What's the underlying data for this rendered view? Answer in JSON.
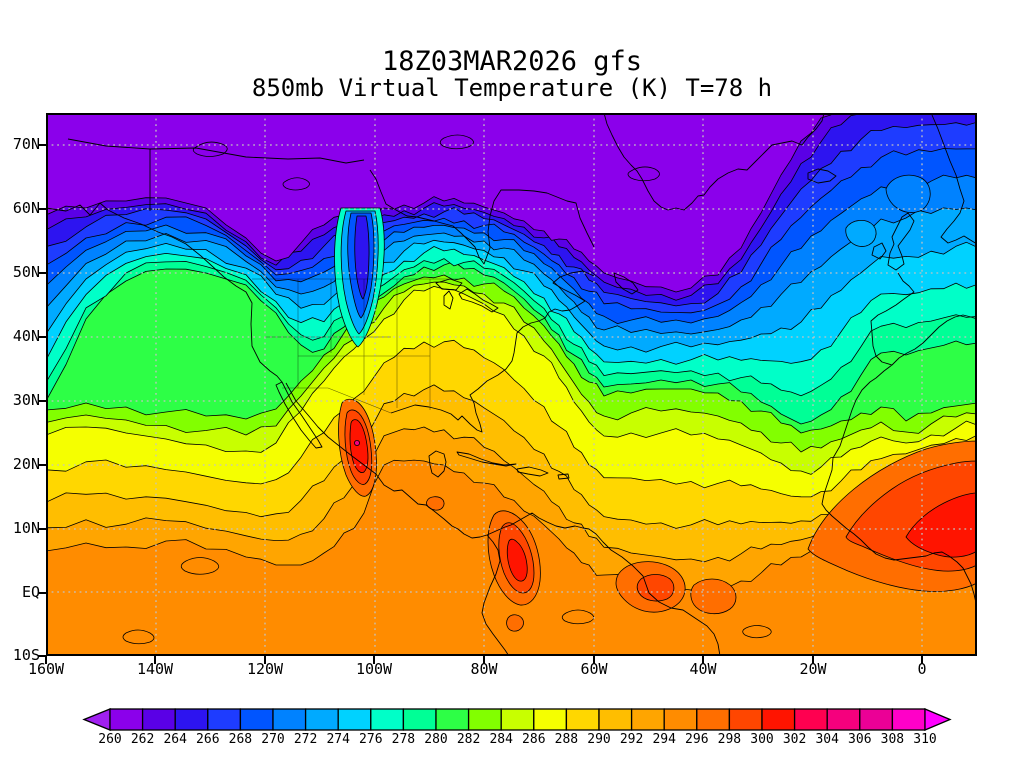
{
  "title": {
    "line1": "18Z03MAR2026 gfs",
    "line2": "850mb Virtual Temperature (K) T=78 h"
  },
  "axes": {
    "lat_labels": [
      "70N",
      "60N",
      "50N",
      "40N",
      "30N",
      "20N",
      "10N",
      "EQ",
      "10S"
    ],
    "lon_labels": [
      "160W",
      "140W",
      "120W",
      "100W",
      "80W",
      "60W",
      "40W",
      "20W",
      "0"
    ]
  },
  "colorbar": {
    "tick_labels": [
      "260",
      "262",
      "264",
      "266",
      "268",
      "270",
      "272",
      "274",
      "276",
      "278",
      "280",
      "282",
      "284",
      "286",
      "288",
      "290",
      "292",
      "294",
      "296",
      "298",
      "300",
      "302",
      "304",
      "306",
      "308",
      "310"
    ],
    "segment_colors": [
      "#8B00EB",
      "#5A00E6",
      "#2D14F0",
      "#1E3CFF",
      "#0055FF",
      "#0082FF",
      "#00AAFF",
      "#00D2FF",
      "#00FFC8",
      "#00FF96",
      "#2DFF46",
      "#82FF00",
      "#C8FF00",
      "#F5FF00",
      "#FFD700",
      "#FFBE00",
      "#FFA500",
      "#FF8C00",
      "#FF6E00",
      "#FF4600",
      "#FF1400",
      "#FF0050",
      "#F5007D",
      "#EB0096",
      "#FF00C8"
    ],
    "arrow_left_color": "#A020F0",
    "arrow_right_color": "#FF00FF",
    "outline_color": "#000000"
  },
  "chart_data": {
    "type": "heatmap",
    "subtype": "filled_contour_weather_map",
    "model": "gfs",
    "init_time": "18Z03MAR2026",
    "variable": "850mb Virtual Temperature",
    "units": "K",
    "forecast_hour": 78,
    "title": "18Z03MAR2026 gfs",
    "subtitle": "850mb Virtual Temperature (K) T=78 h",
    "contour_interval_K": 2,
    "levels_K": [
      260,
      262,
      264,
      266,
      268,
      270,
      272,
      274,
      276,
      278,
      280,
      282,
      284,
      286,
      288,
      290,
      292,
      294,
      296,
      298,
      300,
      302,
      304,
      306,
      308,
      310
    ],
    "colorbar_below_color": "#A020F0",
    "colorbar_above_color": "#FF00FF",
    "domain": {
      "lon_min_deg": -160,
      "lon_max_deg": 10,
      "lat_min_deg": -10,
      "lat_max_deg": 75
    },
    "grid": {
      "lat_interval_deg": 10,
      "lon_interval_deg": 20,
      "style": "dotted gray"
    },
    "legend_position": "bottom",
    "features": [
      {
        "name": "arctic-cold-pool",
        "description": "Air below 262 K covering Alaska's North Slope, northern Canada, Hudson Bay region and Greenland",
        "approx_value_K": 260
      },
      {
        "name": "north-atlantic-cold-tongue",
        "description": "Cold trough of 260-268 K air extending southeast over Labrador Sea and the central North Atlantic to about 48N 45W"
      },
      {
        "name": "plains-cold-wedge",
        "description": "Narrow 266-274 K cold wedge diving south along the Rockies/High Plains to about 40N 104W"
      },
      {
        "name": "central-us-mild-ridge",
        "description": "Mild 286-290 K air bulging north to about 46N over the central United States"
      },
      {
        "name": "gulf-of-alaska-mild-lobe",
        "description": "Mild maritime 278-282 K air reaching about 52N in the Gulf of Alaska"
      },
      {
        "name": "europe-mild-sector",
        "description": "272-278 K maritime air over the UK, France and Scandinavia"
      },
      {
        "name": "mexico-warm-max",
        "description": "Warm maximum over the Mexican Plateau near 24N 104W",
        "approx_value_K": 304
      },
      {
        "name": "colombia-warm-max",
        "description": "Warm maximum over Colombia/Venezuela near 5N 73W",
        "approx_value_K": 302
      },
      {
        "name": "west-africa-warm-max",
        "description": "Broad warm area over West Africa and the Sahel",
        "approx_value_K": 300
      },
      {
        "name": "tropical-belt",
        "description": "292-296 K across the deep tropics from the eastern Pacific to the Atlantic"
      }
    ]
  }
}
